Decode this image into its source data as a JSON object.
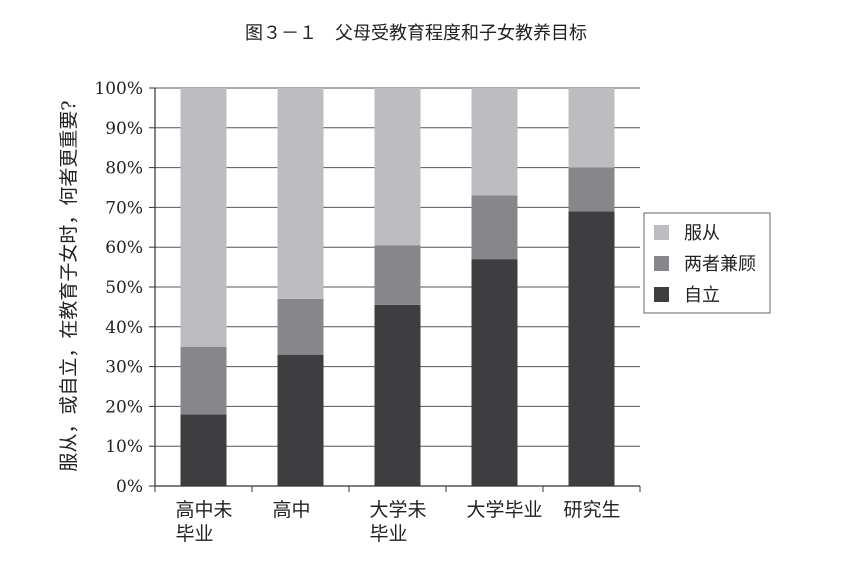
{
  "chart_data": {
    "type": "bar",
    "stacked": true,
    "percent": true,
    "title": "图３－１　父母受教育程度和子女教养目标",
    "ylabel": "服从，或自立，在教育子女时，何者更重要?",
    "xlabel": "",
    "ylim": [
      0,
      100
    ],
    "yticks": [
      "0%",
      "10%",
      "20%",
      "30%",
      "40%",
      "50%",
      "60%",
      "70%",
      "80%",
      "90%",
      "100%"
    ],
    "categories": [
      [
        "高中未",
        "毕业"
      ],
      [
        "高中"
      ],
      [
        "大学未",
        "毕业"
      ],
      [
        "大学毕业"
      ],
      [
        "研究生"
      ]
    ],
    "series": [
      {
        "name": "自立",
        "color": "#3e3d40",
        "values": [
          18,
          33,
          45.5,
          57,
          69
        ]
      },
      {
        "name": "两者兼顾",
        "color": "#87868a",
        "values": [
          17,
          14,
          15,
          16,
          11
        ]
      },
      {
        "name": "服从",
        "color": "#bdbcc0",
        "values": [
          65,
          53,
          39.5,
          27,
          20
        ]
      }
    ],
    "legend_order": [
      "服从",
      "两者兼顾",
      "自立"
    ],
    "legend_position": "right",
    "grid": true
  }
}
